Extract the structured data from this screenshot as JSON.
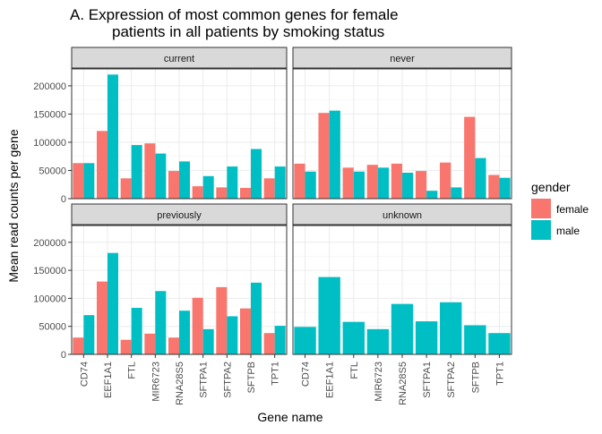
{
  "chart_data": {
    "type": "bar",
    "title_line1": "A. Expression of most common genes for female",
    "title_line2": "patients in all patients by smoking status",
    "xlabel": "Gene name",
    "ylabel": "Mean read counts per gene",
    "ylim": [
      0,
      230000
    ],
    "yticks": [
      0,
      50000,
      100000,
      150000,
      200000
    ],
    "ytick_labels": [
      "0",
      "50000",
      "100000",
      "150000",
      "200000"
    ],
    "categories": [
      "CD74",
      "EEF1A1",
      "FTL",
      "MIR6723",
      "RNA28S5",
      "SFTPA1",
      "SFTPA2",
      "SFTPB",
      "TPT1"
    ],
    "legend": {
      "title": "gender",
      "entries": [
        {
          "name": "female",
          "color": "#F8766D"
        },
        {
          "name": "male",
          "color": "#00BFC4"
        }
      ]
    },
    "panels": [
      {
        "label": "current",
        "series": [
          {
            "name": "female",
            "values": [
              63000,
              120000,
              36000,
              98000,
              49000,
              22000,
              20000,
              19000,
              36000
            ]
          },
          {
            "name": "male",
            "values": [
              63000,
              220000,
              95000,
              80000,
              66000,
              40000,
              57000,
              88000,
              57000
            ]
          }
        ]
      },
      {
        "label": "never",
        "series": [
          {
            "name": "female",
            "values": [
              62000,
              152000,
              55000,
              60000,
              62000,
              49000,
              64000,
              145000,
              42000
            ]
          },
          {
            "name": "male",
            "values": [
              48000,
              156000,
              48000,
              55000,
              46000,
              14000,
              20000,
              72000,
              37000
            ]
          }
        ]
      },
      {
        "label": "previously",
        "series": [
          {
            "name": "female",
            "values": [
              30000,
              130000,
              26000,
              37000,
              30000,
              101000,
              120000,
              82000,
              38000
            ]
          },
          {
            "name": "male",
            "values": [
              70000,
              181000,
              83000,
              113000,
              78000,
              45000,
              68000,
              128000,
              51000
            ]
          }
        ]
      },
      {
        "label": "unknown",
        "series": [
          {
            "name": "female",
            "values": [
              null,
              null,
              null,
              null,
              null,
              null,
              null,
              null,
              null
            ]
          },
          {
            "name": "male",
            "values": [
              49000,
              138000,
              58000,
              45000,
              90000,
              59000,
              93000,
              52000,
              38000
            ]
          }
        ]
      }
    ]
  }
}
